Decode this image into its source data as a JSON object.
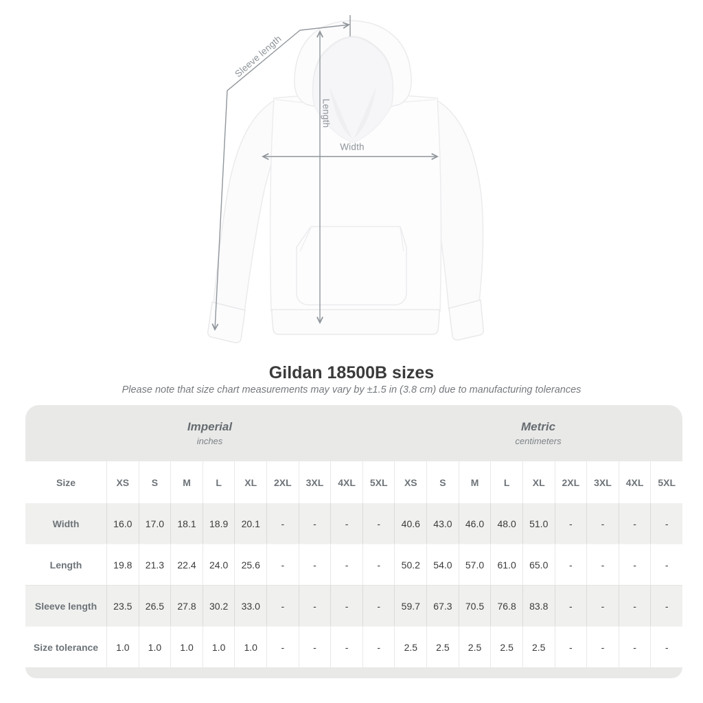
{
  "diagram": {
    "labels": {
      "sleeve_length": "Sleeve length",
      "length": "Length",
      "width": "Width"
    }
  },
  "title": "Gildan 18500B sizes",
  "subtitle": "Please note that size chart measurements may vary by ±1.5 in (3.8 cm) due to manufacturing tolerances",
  "table": {
    "groups": [
      {
        "label": "Imperial",
        "sublabel": "inches"
      },
      {
        "label": "Metric",
        "sublabel": "centimeters"
      }
    ],
    "size_header": "Size",
    "sizes": [
      "XS",
      "S",
      "M",
      "L",
      "XL",
      "2XL",
      "3XL",
      "4XL",
      "5XL"
    ],
    "rows": [
      {
        "label": "Width",
        "imperial": [
          "16.0",
          "17.0",
          "18.1",
          "18.9",
          "20.1",
          "-",
          "-",
          "-",
          "-"
        ],
        "metric": [
          "40.6",
          "43.0",
          "46.0",
          "48.0",
          "51.0",
          "-",
          "-",
          "-",
          "-"
        ]
      },
      {
        "label": "Length",
        "imperial": [
          "19.8",
          "21.3",
          "22.4",
          "24.0",
          "25.6",
          "-",
          "-",
          "-",
          "-"
        ],
        "metric": [
          "50.2",
          "54.0",
          "57.0",
          "61.0",
          "65.0",
          "-",
          "-",
          "-",
          "-"
        ]
      },
      {
        "label": "Sleeve length",
        "imperial": [
          "23.5",
          "26.5",
          "27.8",
          "30.2",
          "33.0",
          "-",
          "-",
          "-",
          "-"
        ],
        "metric": [
          "59.7",
          "67.3",
          "70.5",
          "76.8",
          "83.8",
          "-",
          "-",
          "-",
          "-"
        ]
      },
      {
        "label": "Size tolerance",
        "imperial": [
          "1.0",
          "1.0",
          "1.0",
          "1.0",
          "1.0",
          "-",
          "-",
          "-",
          "-"
        ],
        "metric": [
          "2.5",
          "2.5",
          "2.5",
          "2.5",
          "2.5",
          "-",
          "-",
          "-",
          "-"
        ]
      }
    ]
  },
  "colors": {
    "arrow_gray": "#8f959a",
    "measure_label_gray": "#8d9398",
    "group_header_bg": "#e9e9e8",
    "stripe_bg": "#f0f0ee",
    "divider": "#dcdcda",
    "title_text": "#3a3a3a",
    "header_text": "#6d7378"
  }
}
